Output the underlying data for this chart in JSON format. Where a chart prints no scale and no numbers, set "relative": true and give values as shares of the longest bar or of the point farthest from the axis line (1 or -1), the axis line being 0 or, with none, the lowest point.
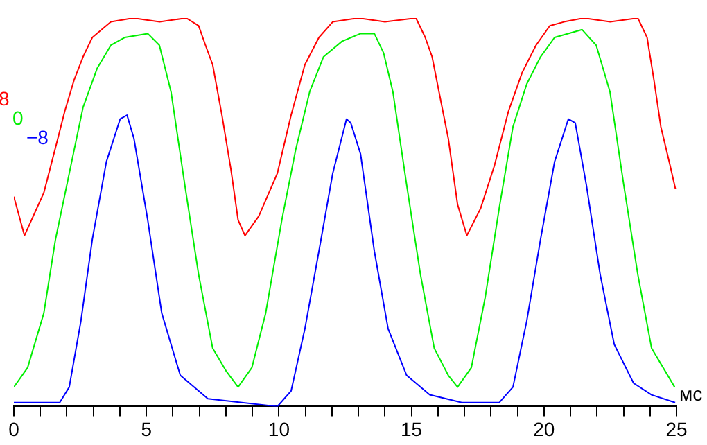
{
  "chart_data": {
    "type": "line",
    "relative": true,
    "xlabel": "мс",
    "xlim": [
      0,
      25
    ],
    "xticks": [
      0,
      {
        "value": 1,
        "label": null
      },
      {
        "value": 2,
        "label": null
      },
      {
        "value": 3,
        "label": null
      },
      {
        "value": 4,
        "label": null
      },
      5,
      {
        "value": 6,
        "label": null
      },
      {
        "value": 7,
        "label": null
      },
      {
        "value": 8,
        "label": null
      },
      {
        "value": 9,
        "label": null
      },
      10,
      {
        "value": 11,
        "label": null
      },
      {
        "value": 12,
        "label": null
      },
      {
        "value": 13,
        "label": null
      },
      {
        "value": 14,
        "label": null
      },
      15,
      {
        "value": 16,
        "label": null
      },
      {
        "value": 17,
        "label": null
      },
      {
        "value": 18,
        "label": null
      },
      {
        "value": 19,
        "label": null
      },
      20,
      {
        "value": 21,
        "label": null
      },
      {
        "value": 22,
        "label": null
      },
      {
        "value": 23,
        "label": null
      },
      {
        "value": 24,
        "label": null
      },
      25
    ],
    "grid": false,
    "legend": "left",
    "marker": "none",
    "line_style": "solid",
    "series": [
      {
        "name": "8",
        "color": "#ff0000",
        "x": [
          0,
          0.4,
          1.13,
          1.66,
          1.92,
          2.27,
          2.61,
          2.96,
          3.66,
          4.5,
          5.5,
          6.5,
          6.97,
          7.23,
          7.5,
          7.85,
          8.19,
          8.46,
          8.72,
          9.24,
          9.94,
          10.46,
          10.98,
          11.51,
          12.03,
          13,
          14,
          15.17,
          15.52,
          15.78,
          16.04,
          16.39,
          16.74,
          17.09,
          17.61,
          18.13,
          18.66,
          19.18,
          19.7,
          20.22,
          20.75,
          21.5,
          22.5,
          23.54,
          23.89,
          24.15,
          24.41,
          24.76,
          24.96
        ],
        "values": [
          0.54,
          0.44,
          0.55,
          0.69,
          0.76,
          0.84,
          0.9,
          0.95,
          0.99,
          1.0,
          0.99,
          1.0,
          0.98,
          0.93,
          0.88,
          0.75,
          0.61,
          0.48,
          0.44,
          0.49,
          0.6,
          0.75,
          0.88,
          0.95,
          0.99,
          1.0,
          0.99,
          1.0,
          0.95,
          0.9,
          0.81,
          0.69,
          0.52,
          0.44,
          0.51,
          0.62,
          0.76,
          0.86,
          0.93,
          0.98,
          0.99,
          1.0,
          0.99,
          1.0,
          0.95,
          0.84,
          0.72,
          0.62,
          0.56
        ]
      },
      {
        "name": "0",
        "color": "#00ee00",
        "x": [
          0,
          0.52,
          1.13,
          1.57,
          2.09,
          2.61,
          3.14,
          3.66,
          4.18,
          5.05,
          5.49,
          5.93,
          6.45,
          6.97,
          7.5,
          8.02,
          8.46,
          8.98,
          9.5,
          10.11,
          10.63,
          11.16,
          11.68,
          12.38,
          13.08,
          13.6,
          13.95,
          14.3,
          14.82,
          15.34,
          15.86,
          16.39,
          16.74,
          17.26,
          17.78,
          18.31,
          18.83,
          19.35,
          19.87,
          20.4,
          21.44,
          21.97,
          22.49,
          23.01,
          23.54,
          24.06,
          24.93
        ],
        "values": [
          0.05,
          0.1,
          0.24,
          0.43,
          0.6,
          0.77,
          0.87,
          0.93,
          0.95,
          0.96,
          0.93,
          0.81,
          0.57,
          0.34,
          0.15,
          0.09,
          0.05,
          0.1,
          0.24,
          0.48,
          0.66,
          0.81,
          0.9,
          0.94,
          0.96,
          0.96,
          0.91,
          0.81,
          0.57,
          0.34,
          0.15,
          0.08,
          0.05,
          0.1,
          0.28,
          0.51,
          0.72,
          0.83,
          0.9,
          0.95,
          0.97,
          0.93,
          0.81,
          0.57,
          0.34,
          0.15,
          0.05
        ]
      },
      {
        "name": "−8",
        "color": "#0000ff",
        "x": [
          0,
          1.73,
          2.09,
          2.53,
          2.96,
          3.49,
          4.01,
          4.27,
          4.53,
          5.05,
          5.58,
          6.28,
          7.32,
          9.94,
          10.46,
          10.98,
          11.51,
          12.03,
          12.55,
          12.71,
          13.08,
          13.6,
          14.12,
          14.82,
          15.69,
          16.9,
          18.31,
          18.83,
          19.35,
          19.87,
          20.4,
          20.92,
          21.18,
          21.6,
          22.12,
          22.65,
          23.38,
          24.06,
          24.95
        ],
        "values": [
          0.01,
          0.01,
          0.05,
          0.22,
          0.43,
          0.63,
          0.74,
          0.75,
          0.69,
          0.48,
          0.24,
          0.08,
          0.02,
          0.0,
          0.04,
          0.2,
          0.4,
          0.6,
          0.74,
          0.73,
          0.65,
          0.4,
          0.2,
          0.08,
          0.03,
          0.01,
          0.01,
          0.05,
          0.22,
          0.43,
          0.63,
          0.74,
          0.73,
          0.57,
          0.34,
          0.16,
          0.06,
          0.03,
          0.01
        ]
      }
    ]
  }
}
